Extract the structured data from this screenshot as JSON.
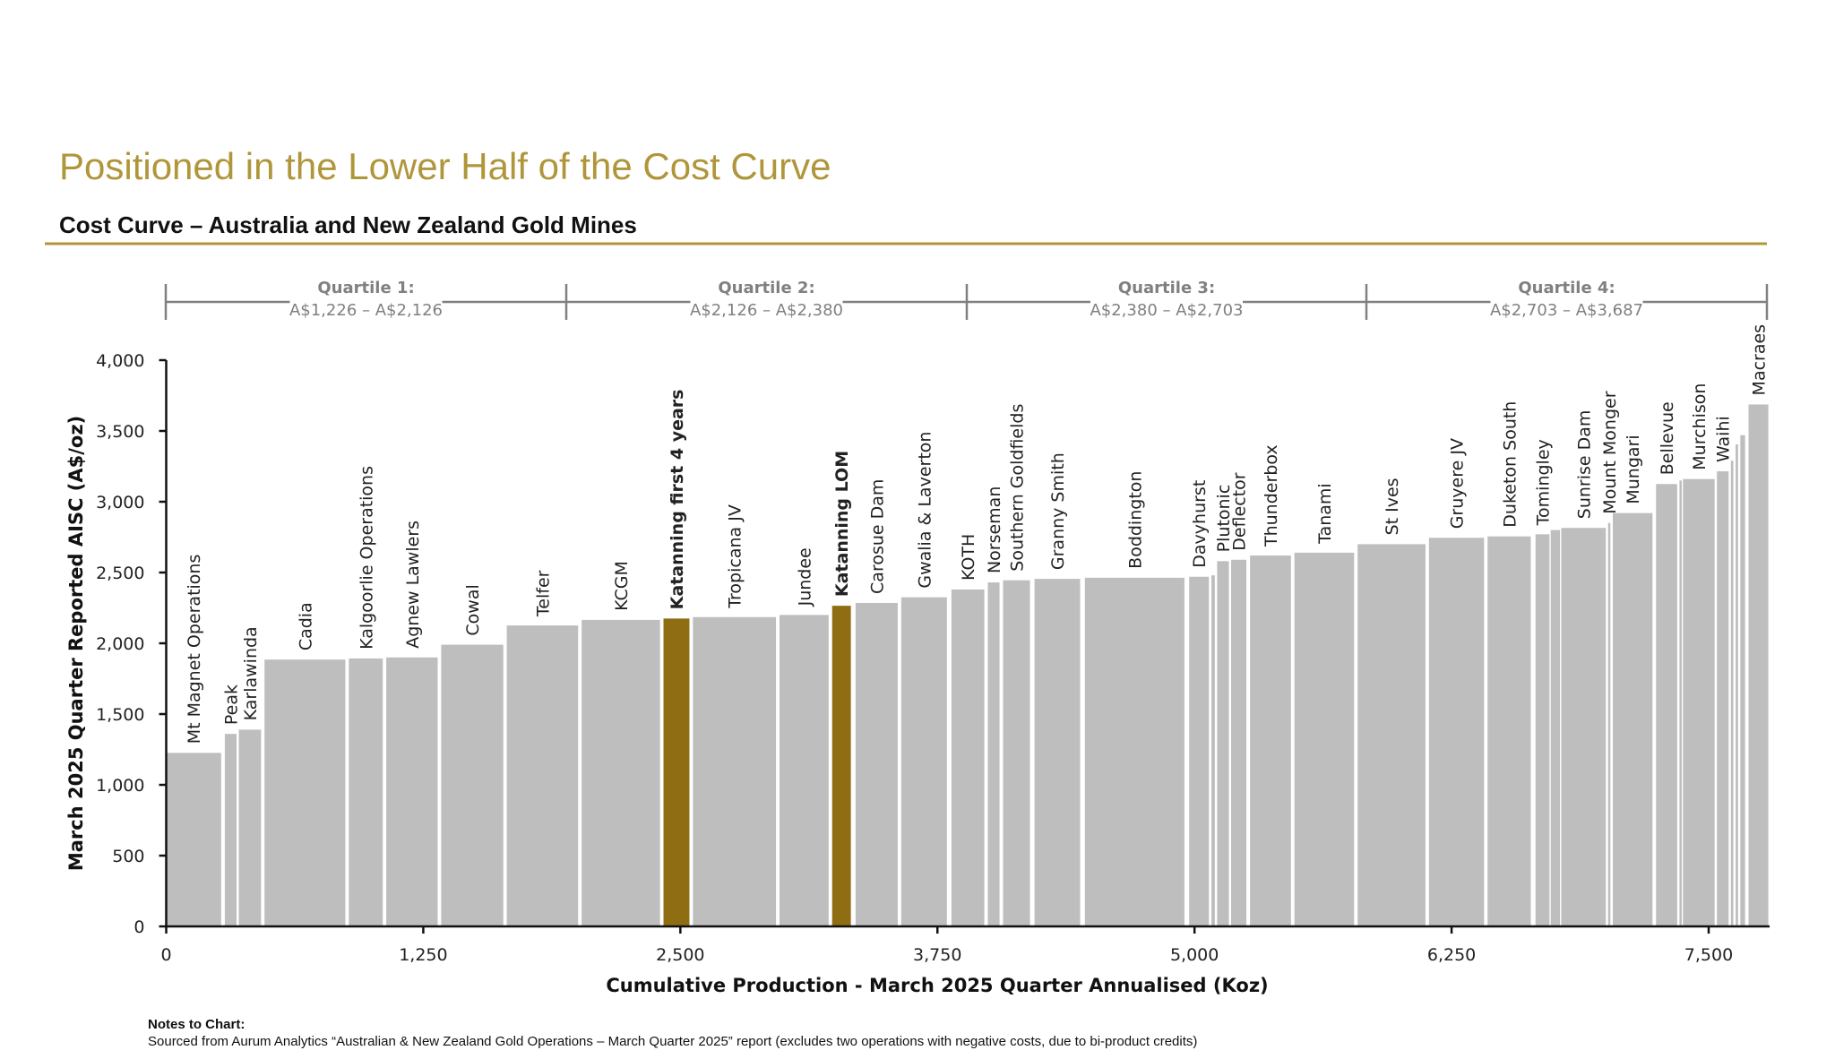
{
  "header": {
    "title": "Positioned in the Lower Half of the Cost Curve",
    "subtitle": "Cost Curve – Australia and New Zealand Gold Mines"
  },
  "colors": {
    "accent": "#B0963A",
    "bar": "#BEBEBE",
    "highlight": "#8F6D12",
    "quartile": "#808080"
  },
  "quartiles": [
    {
      "label": "Quartile 1:",
      "range": "A$1,226 – A$2,126"
    },
    {
      "label": "Quartile 2:",
      "range": "A$2,126 – A$2,380"
    },
    {
      "label": "Quartile 3:",
      "range": "A$2,380 – A$2,703"
    },
    {
      "label": "Quartile 4:",
      "range": "A$2,703 – A$3,687"
    }
  ],
  "chart_data": {
    "type": "bar",
    "subtype": "variable-width cost curve",
    "xlabel": "Cumulative Production - March 2025 Quarter Annualised (Koz)",
    "ylabel": "March 2025 Quarter Reported AISC (A$/oz)",
    "xlim": [
      0,
      7800
    ],
    "ylim": [
      0,
      4000
    ],
    "x_ticks": [
      0,
      1250,
      2500,
      3750,
      5000,
      6250,
      7500
    ],
    "x_tick_labels": [
      "0",
      "1,250",
      "2,500",
      "3,750",
      "5,000",
      "6,250",
      "7,500"
    ],
    "y_ticks": [
      0,
      500,
      1000,
      1500,
      2000,
      2500,
      3000,
      3500,
      4000
    ],
    "y_tick_labels": [
      "0",
      "500",
      "1,000",
      "1,500",
      "2,000",
      "2,500",
      "3,000",
      "3,500",
      "4,000"
    ],
    "grid": false,
    "bars": [
      {
        "name": "Mt Magnet Operations",
        "x0": 0,
        "x1": 267,
        "aisc": 1226
      },
      {
        "name": "Peak",
        "x0": 285,
        "x1": 342,
        "aisc": 1360
      },
      {
        "name": "Karlawinda",
        "x0": 353,
        "x1": 461,
        "aisc": 1390
      },
      {
        "name": "Cadia",
        "x0": 478,
        "x1": 871,
        "aisc": 1885
      },
      {
        "name": "Kalgoorlie Operations",
        "x0": 888,
        "x1": 1053,
        "aisc": 1893
      },
      {
        "name": "Agnew Lawlers",
        "x0": 1070,
        "x1": 1320,
        "aisc": 1900
      },
      {
        "name": "Cowal",
        "x0": 1337,
        "x1": 1639,
        "aisc": 1990
      },
      {
        "name": "Telfer",
        "x0": 1656,
        "x1": 2003,
        "aisc": 2126
      },
      {
        "name": "KCGM",
        "x0": 2020,
        "x1": 2401,
        "aisc": 2165
      },
      {
        "name": "Katanning first 4 years",
        "x0": 2418,
        "x1": 2544,
        "aisc": 2175,
        "highlight": true
      },
      {
        "name": "Tropicana JV",
        "x0": 2561,
        "x1": 2965,
        "aisc": 2185
      },
      {
        "name": "Jundee",
        "x0": 2982,
        "x1": 3221,
        "aisc": 2200
      },
      {
        "name": "Katanning LOM",
        "x0": 3238,
        "x1": 3329,
        "aisc": 2265,
        "highlight": true
      },
      {
        "name": "Carosue Dam",
        "x0": 3352,
        "x1": 3557,
        "aisc": 2285
      },
      {
        "name": "Gwalia & Laverton",
        "x0": 3574,
        "x1": 3796,
        "aisc": 2325
      },
      {
        "name": "KOTH",
        "x0": 3818,
        "x1": 3978,
        "aisc": 2380
      },
      {
        "name": "Norseman",
        "x0": 3995,
        "x1": 4052,
        "aisc": 2430
      },
      {
        "name": "Southern Goldfields",
        "x0": 4069,
        "x1": 4200,
        "aisc": 2445
      },
      {
        "name": "Granny Smith",
        "x0": 4222,
        "x1": 4444,
        "aisc": 2455
      },
      {
        "name": "Boddington",
        "x0": 4467,
        "x1": 4951,
        "aisc": 2463
      },
      {
        "name": "Davyhurst",
        "x0": 4974,
        "x1": 5070,
        "aisc": 2470
      },
      {
        "name": "",
        "x0": 5082,
        "x1": 5099,
        "aisc": 2480
      },
      {
        "name": "Plutonic",
        "x0": 5110,
        "x1": 5167,
        "aisc": 2580
      },
      {
        "name": "Deflector",
        "x0": 5178,
        "x1": 5252,
        "aisc": 2590
      },
      {
        "name": "Thunderbox",
        "x0": 5270,
        "x1": 5469,
        "aisc": 2620
      },
      {
        "name": "Tanami",
        "x0": 5486,
        "x1": 5776,
        "aisc": 2640
      },
      {
        "name": "St Ives",
        "x0": 5793,
        "x1": 6123,
        "aisc": 2700
      },
      {
        "name": "Gruyere JV",
        "x0": 6140,
        "x1": 6408,
        "aisc": 2745
      },
      {
        "name": "Duketon South",
        "x0": 6425,
        "x1": 6635,
        "aisc": 2755
      },
      {
        "name": "Tomingley",
        "x0": 6658,
        "x1": 6726,
        "aisc": 2770
      },
      {
        "name": "",
        "x0": 6732,
        "x1": 6777,
        "aisc": 2800
      },
      {
        "name": "Sunrise Dam",
        "x0": 6783,
        "x1": 7000,
        "aisc": 2815
      },
      {
        "name": "Mount Monger",
        "x0": 7011,
        "x1": 7022,
        "aisc": 2850
      },
      {
        "name": "Mungari",
        "x0": 7034,
        "x1": 7227,
        "aisc": 2920
      },
      {
        "name": "Bellevue",
        "x0": 7244,
        "x1": 7347,
        "aisc": 3125
      },
      {
        "name": "",
        "x0": 7358,
        "x1": 7369,
        "aisc": 3150
      },
      {
        "name": "Murchison",
        "x0": 7375,
        "x1": 7529,
        "aisc": 3160
      },
      {
        "name": "Waihi",
        "x0": 7540,
        "x1": 7597,
        "aisc": 3215
      },
      {
        "name": "",
        "x0": 7608,
        "x1": 7620,
        "aisc": 3290
      },
      {
        "name": "",
        "x0": 7631,
        "x1": 7643,
        "aisc": 3405
      },
      {
        "name": "",
        "x0": 7654,
        "x1": 7677,
        "aisc": 3470
      },
      {
        "name": "Macraes",
        "x0": 7694,
        "x1": 7790,
        "aisc": 3687
      }
    ]
  },
  "notes": {
    "heading": "Notes to Chart:",
    "text": "Sourced from Aurum Analytics “Australian & New Zealand Gold Operations – March Quarter 2025” report (excludes two operations with negative costs, due to bi-product credits)"
  }
}
